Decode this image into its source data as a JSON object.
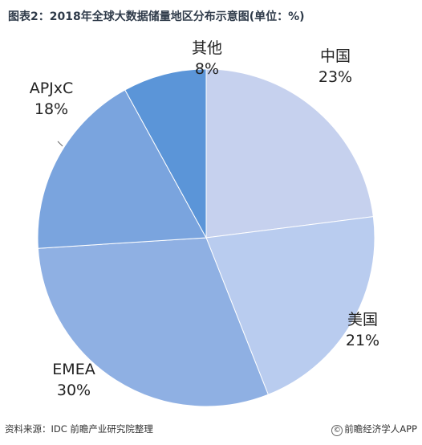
{
  "header": {
    "title": "图表2：2018年全球大数据储量地区分布示意图(单位：%)"
  },
  "footer": {
    "source": "资料来源：IDC 前瞻产业研究院整理",
    "brand": "前瞻经济学人APP"
  },
  "chart_data": {
    "type": "pie",
    "title": "图表2：2018年全球大数据储量地区分布示意图(单位：%)",
    "unit": "%",
    "slices": [
      {
        "label": "中国",
        "value": 23,
        "value_label": "23%",
        "color": "#c6d1ee"
      },
      {
        "label": "美国",
        "value": 21,
        "value_label": "21%",
        "color": "#b9ccef"
      },
      {
        "label": "EMEA",
        "value": 30,
        "value_label": "30%",
        "color": "#8fb0e3"
      },
      {
        "label": "APJxC",
        "value": 18,
        "value_label": "18%",
        "color": "#7aa4de"
      },
      {
        "label": "其他",
        "value": 8,
        "value_label": "8%",
        "color": "#5b95d8"
      }
    ],
    "start": "12 o'clock",
    "direction": "clockwise"
  }
}
